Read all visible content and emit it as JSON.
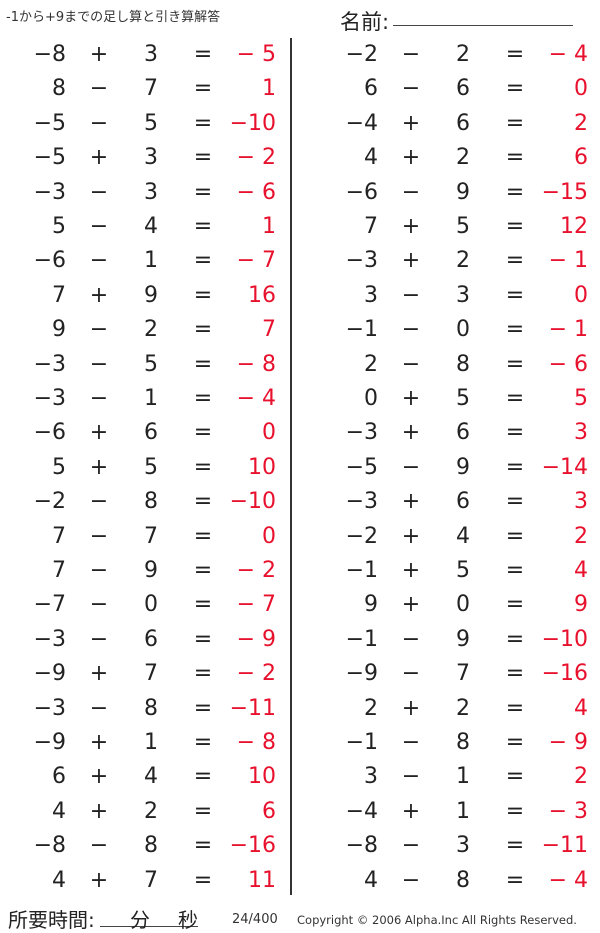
{
  "header": {
    "title": "-1から+9までの足し算と引き算解答",
    "name_label": "名前:"
  },
  "answer_color": "#e8112d",
  "left_problems": [
    {
      "a": "−8",
      "op": "+",
      "b": "3",
      "eq": "=",
      "ans": "− 5"
    },
    {
      "a": "8",
      "op": "−",
      "b": "7",
      "eq": "=",
      "ans": "1"
    },
    {
      "a": "−5",
      "op": "−",
      "b": "5",
      "eq": "=",
      "ans": "−10"
    },
    {
      "a": "−5",
      "op": "+",
      "b": "3",
      "eq": "=",
      "ans": "− 2"
    },
    {
      "a": "−3",
      "op": "−",
      "b": "3",
      "eq": "=",
      "ans": "− 6"
    },
    {
      "a": "5",
      "op": "−",
      "b": "4",
      "eq": "=",
      "ans": "1"
    },
    {
      "a": "−6",
      "op": "−",
      "b": "1",
      "eq": "=",
      "ans": "− 7"
    },
    {
      "a": "7",
      "op": "+",
      "b": "9",
      "eq": "=",
      "ans": "16"
    },
    {
      "a": "9",
      "op": "−",
      "b": "2",
      "eq": "=",
      "ans": "7"
    },
    {
      "a": "−3",
      "op": "−",
      "b": "5",
      "eq": "=",
      "ans": "− 8"
    },
    {
      "a": "−3",
      "op": "−",
      "b": "1",
      "eq": "=",
      "ans": "− 4"
    },
    {
      "a": "−6",
      "op": "+",
      "b": "6",
      "eq": "=",
      "ans": "0"
    },
    {
      "a": "5",
      "op": "+",
      "b": "5",
      "eq": "=",
      "ans": "10"
    },
    {
      "a": "−2",
      "op": "−",
      "b": "8",
      "eq": "=",
      "ans": "−10"
    },
    {
      "a": "7",
      "op": "−",
      "b": "7",
      "eq": "=",
      "ans": "0"
    },
    {
      "a": "7",
      "op": "−",
      "b": "9",
      "eq": "=",
      "ans": "− 2"
    },
    {
      "a": "−7",
      "op": "−",
      "b": "0",
      "eq": "=",
      "ans": "− 7"
    },
    {
      "a": "−3",
      "op": "−",
      "b": "6",
      "eq": "=",
      "ans": "− 9"
    },
    {
      "a": "−9",
      "op": "+",
      "b": "7",
      "eq": "=",
      "ans": "− 2"
    },
    {
      "a": "−3",
      "op": "−",
      "b": "8",
      "eq": "=",
      "ans": "−11"
    },
    {
      "a": "−9",
      "op": "+",
      "b": "1",
      "eq": "=",
      "ans": "− 8"
    },
    {
      "a": "6",
      "op": "+",
      "b": "4",
      "eq": "=",
      "ans": "10"
    },
    {
      "a": "4",
      "op": "+",
      "b": "2",
      "eq": "=",
      "ans": "6"
    },
    {
      "a": "−8",
      "op": "−",
      "b": "8",
      "eq": "=",
      "ans": "−16"
    },
    {
      "a": "4",
      "op": "+",
      "b": "7",
      "eq": "=",
      "ans": "11"
    }
  ],
  "right_problems": [
    {
      "a": "−2",
      "op": "−",
      "b": "2",
      "eq": "=",
      "ans": "− 4"
    },
    {
      "a": "6",
      "op": "−",
      "b": "6",
      "eq": "=",
      "ans": "0"
    },
    {
      "a": "−4",
      "op": "+",
      "b": "6",
      "eq": "=",
      "ans": "2"
    },
    {
      "a": "4",
      "op": "+",
      "b": "2",
      "eq": "=",
      "ans": "6"
    },
    {
      "a": "−6",
      "op": "−",
      "b": "9",
      "eq": "=",
      "ans": "−15"
    },
    {
      "a": "7",
      "op": "+",
      "b": "5",
      "eq": "=",
      "ans": "12"
    },
    {
      "a": "−3",
      "op": "+",
      "b": "2",
      "eq": "=",
      "ans": "− 1"
    },
    {
      "a": "3",
      "op": "−",
      "b": "3",
      "eq": "=",
      "ans": "0"
    },
    {
      "a": "−1",
      "op": "−",
      "b": "0",
      "eq": "=",
      "ans": "− 1"
    },
    {
      "a": "2",
      "op": "−",
      "b": "8",
      "eq": "=",
      "ans": "− 6"
    },
    {
      "a": "0",
      "op": "+",
      "b": "5",
      "eq": "=",
      "ans": "5"
    },
    {
      "a": "−3",
      "op": "+",
      "b": "6",
      "eq": "=",
      "ans": "3"
    },
    {
      "a": "−5",
      "op": "−",
      "b": "9",
      "eq": "=",
      "ans": "−14"
    },
    {
      "a": "−3",
      "op": "+",
      "b": "6",
      "eq": "=",
      "ans": "3"
    },
    {
      "a": "−2",
      "op": "+",
      "b": "4",
      "eq": "=",
      "ans": "2"
    },
    {
      "a": "−1",
      "op": "+",
      "b": "5",
      "eq": "=",
      "ans": "4"
    },
    {
      "a": "9",
      "op": "+",
      "b": "0",
      "eq": "=",
      "ans": "9"
    },
    {
      "a": "−1",
      "op": "−",
      "b": "9",
      "eq": "=",
      "ans": "−10"
    },
    {
      "a": "−9",
      "op": "−",
      "b": "7",
      "eq": "=",
      "ans": "−16"
    },
    {
      "a": "2",
      "op": "+",
      "b": "2",
      "eq": "=",
      "ans": "4"
    },
    {
      "a": "−1",
      "op": "−",
      "b": "8",
      "eq": "=",
      "ans": "− 9"
    },
    {
      "a": "3",
      "op": "−",
      "b": "1",
      "eq": "=",
      "ans": "2"
    },
    {
      "a": "−4",
      "op": "+",
      "b": "1",
      "eq": "=",
      "ans": "− 3"
    },
    {
      "a": "−8",
      "op": "−",
      "b": "3",
      "eq": "=",
      "ans": "−11"
    },
    {
      "a": "4",
      "op": "−",
      "b": "8",
      "eq": "=",
      "ans": "− 4"
    }
  ],
  "footer": {
    "time_label": "所要時間:",
    "minutes_label": "分",
    "seconds_label": "秒",
    "page": "24/400",
    "copyright": "Copyright © 2006 Alpha.Inc All Rights Reserved."
  }
}
